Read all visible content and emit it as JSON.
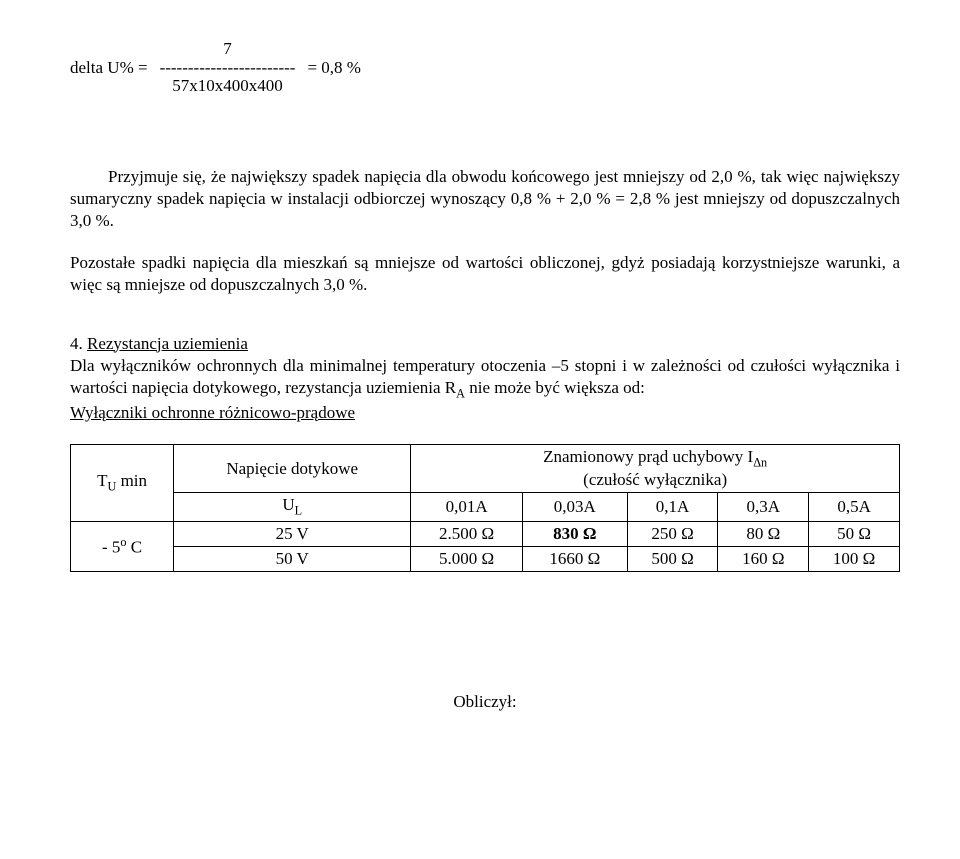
{
  "formula": {
    "lhs": "delta U% =",
    "numerator": "7",
    "dashes": "------------------------",
    "denominator": "57x10x400x400",
    "rhs": "= 0,8 %"
  },
  "para1": "Przyjmuje się, że największy spadek napięcia dla obwodu końcowego jest mniejszy od 2,0 %, tak więc największy sumaryczny spadek napięcia w instalacji odbiorczej wynoszący 0,8 % + 2,0 % = 2,8 % jest mniejszy od dopuszczalnych 3,0 %.",
  "para2": "Pozostałe spadki napięcia dla mieszkań są mniejsze od wartości obliczonej, gdyż posiadają korzystniejsze warunki, a więc są mniejsze od dopuszczalnych 3,0 %.",
  "section": {
    "num": "4.",
    "title": "Rezystancja uziemienia",
    "body_pre": "Dla wyłączników ochronnych dla minimalnej temperatury otoczenia –5 stopni i w zależności od czułości wyłącznika i wartości napięcia dotykowego, rezystancja uziemienia R",
    "body_sub": "A",
    "body_post": " nie może być większa od:",
    "subtitle": "Wyłączniki ochronne różnicowo-prądowe"
  },
  "table": {
    "row_header_1_a": "T",
    "row_header_1_a_sub": "U",
    "row_header_1_b": " min",
    "row_header_2_a": "- 5",
    "row_header_2_sup": "o",
    "row_header_2_b": "  C",
    "col_header_1": "Napięcie dotykowe",
    "col_header_2_a": "Znamionowy prąd uchybowy I",
    "col_header_2_sub": "Δn",
    "col_header_2_b": "(czułość wyłącznika)",
    "ul_a": "U",
    "ul_sub": "L",
    "currents": [
      "0,01A",
      "0,03A",
      "0,1A",
      "0,3A",
      "0,5A"
    ],
    "rows": [
      {
        "voltage": "25 V",
        "vals": [
          "2.500 Ω",
          "830 Ω",
          "250 Ω",
          "80 Ω",
          "50 Ω"
        ],
        "bold_col": 1
      },
      {
        "voltage": "50 V",
        "vals": [
          "5.000 Ω",
          "1660 Ω",
          "500 Ω",
          "160 Ω",
          "100 Ω"
        ],
        "bold_col": -1
      }
    ]
  },
  "footer": "Obliczył:"
}
